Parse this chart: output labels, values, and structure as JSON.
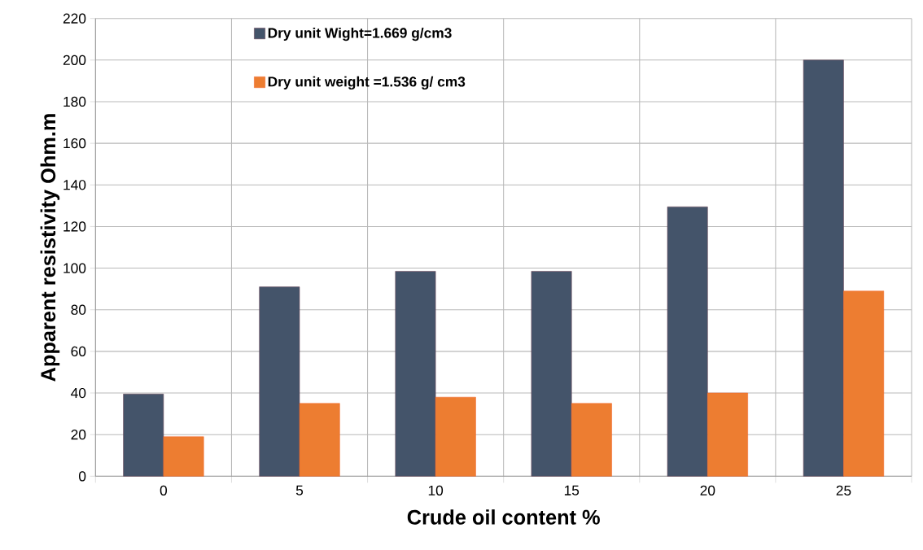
{
  "chart_data": {
    "type": "bar",
    "xlabel": "Crude oil content %",
    "ylabel": "Apparent resistivity Ohm.m",
    "categories": [
      "0",
      "5",
      "10",
      "15",
      "20",
      "25"
    ],
    "series": [
      {
        "name": "Dry unit Wight=1.669 g/cm3",
        "color": "#44546a",
        "values": [
          39.5,
          91,
          98.5,
          98.5,
          129.5,
          200
        ]
      },
      {
        "name": "Dry unit weight =1.536 g/ cm3",
        "color": "#ed7d31",
        "values": [
          19,
          35,
          38,
          35,
          40,
          89
        ]
      }
    ],
    "ylim": [
      0,
      220
    ],
    "yticks": [
      0,
      20,
      40,
      60,
      80,
      100,
      120,
      140,
      160,
      180,
      200,
      220
    ],
    "grid": true,
    "legend": "top"
  }
}
